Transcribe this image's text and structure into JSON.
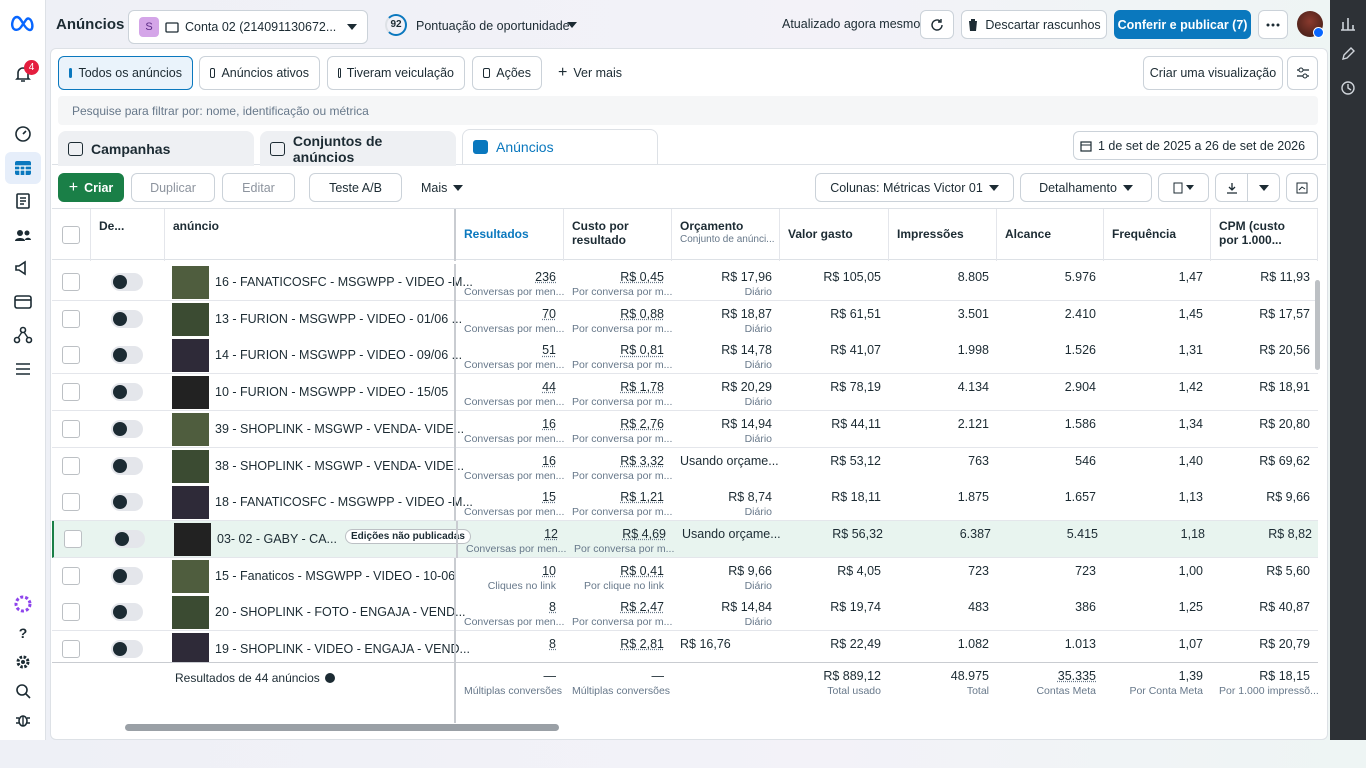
{
  "header": {
    "title": "Anúncios",
    "account_initial": "S",
    "account": "Conta 02 (214091130672...",
    "score": "92",
    "score_label": "Pontuação de oportunidade",
    "updated": "Atualizado agora mesmo",
    "discard": "Descartar rascunhos",
    "publish": "Conferir e publicar (7)",
    "notifications": "4"
  },
  "sidebar": {
    "help": "?"
  },
  "filters": {
    "items": [
      "Todos os anúncios",
      "Anúncios ativos",
      "Tiveram veiculação",
      "Ações",
      "Ver mais"
    ],
    "create_view": "Criar uma visualização"
  },
  "search": {
    "placeholder": "Pesquise para filtrar por: nome, identificação ou métrica"
  },
  "tabs": [
    "Campanhas",
    "Conjuntos de anúncios",
    "Anúncios"
  ],
  "date_range": "1 de set de 2025 a 26 de set de 2026",
  "toolbar": {
    "create": "Criar",
    "duplicate": "Duplicar",
    "edit": "Editar",
    "ab_test": "Teste A/B",
    "more": "Mais",
    "columns": "Colunas: Métricas Victor 01",
    "breakdown": "Detalhamento"
  },
  "table": {
    "columns": {
      "delivery": "De...",
      "name": "anúncio",
      "results": "Resultados",
      "cost": "Custo por resultado",
      "budget": "Orçamento",
      "budget_sub": "Conjunto de anúnci...",
      "spent": "Valor gasto",
      "impressions": "Impressões",
      "reach": "Alcance",
      "frequency": "Frequência",
      "cpm": "CPM (custo por 1.000..."
    },
    "rows": [
      {
        "name": "16 - FANATICOSFC - MSGWPP - VIDEO -M...",
        "results": "236",
        "results_sub": "Conversas por men...",
        "cost": "R$ 0,45",
        "cost_sub": "Por conversa por m...",
        "budget": "R$ 17,96",
        "budget_sub": "Diário",
        "spent": "R$ 105,05",
        "impressions": "8.805",
        "reach": "5.976",
        "frequency": "1,47",
        "cpm": "R$ 11,93"
      },
      {
        "name": "13 - FURION - MSGWPP - VIDEO - 01/06 ...",
        "results": "70",
        "results_sub": "Conversas por men...",
        "cost": "R$ 0,88",
        "cost_sub": "Por conversa por m...",
        "budget": "R$ 18,87",
        "budget_sub": "Diário",
        "spent": "R$ 61,51",
        "impressions": "3.501",
        "reach": "2.410",
        "frequency": "1,45",
        "cpm": "R$ 17,57"
      },
      {
        "name": "14 - FURION - MSGWPP - VIDEO - 09/06 ...",
        "results": "51",
        "results_sub": "Conversas por men...",
        "cost": "R$ 0,81",
        "cost_sub": "Por conversa por m...",
        "budget": "R$ 14,78",
        "budget_sub": "Diário",
        "spent": "R$ 41,07",
        "impressions": "1.998",
        "reach": "1.526",
        "frequency": "1,31",
        "cpm": "R$ 20,56"
      },
      {
        "name": "10 - FURION - MSGWPP - VIDEO - 15/05",
        "results": "44",
        "results_sub": "Conversas por men...",
        "cost": "R$ 1,78",
        "cost_sub": "Por conversa por m...",
        "budget": "R$ 20,29",
        "budget_sub": "Diário",
        "spent": "R$ 78,19",
        "impressions": "4.134",
        "reach": "2.904",
        "frequency": "1,42",
        "cpm": "R$ 18,91"
      },
      {
        "name": "39 - SHOPLINK - MSGWP - VENDA- VIDE...",
        "results": "16",
        "results_sub": "Conversas por men...",
        "cost": "R$ 2,76",
        "cost_sub": "Por conversa por m...",
        "budget": "R$ 14,94",
        "budget_sub": "Diário",
        "spent": "R$ 44,11",
        "impressions": "2.121",
        "reach": "1.586",
        "frequency": "1,34",
        "cpm": "R$ 20,80"
      },
      {
        "name": "38 - SHOPLINK - MSGWP - VENDA- VIDE...",
        "results": "16",
        "results_sub": "Conversas por men...",
        "cost": "R$ 3,32",
        "cost_sub": "Por conversa por m...",
        "budget": "Usando orçame...",
        "spent": "R$ 53,12",
        "impressions": "763",
        "reach": "546",
        "frequency": "1,40",
        "cpm": "R$ 69,62"
      },
      {
        "name": "18 - FANATICOSFC - MSGWPP - VIDEO -M...",
        "results": "15",
        "results_sub": "Conversas por men...",
        "cost": "R$ 1,21",
        "cost_sub": "Por conversa por m...",
        "budget": "R$ 8,74",
        "budget_sub": "Diário",
        "spent": "R$ 18,11",
        "impressions": "1.875",
        "reach": "1.657",
        "frequency": "1,13",
        "cpm": "R$ 9,66"
      },
      {
        "name": "03- 02 - GABY - CA...",
        "badge": "Edições não publicadas",
        "results": "12",
        "results_sub": "Conversas por men...",
        "cost": "R$ 4,69",
        "cost_sub": "Por conversa por m...",
        "budget": "Usando orçame...",
        "spent": "R$ 56,32",
        "impressions": "6.387",
        "reach": "5.415",
        "frequency": "1,18",
        "cpm": "R$ 8,82"
      },
      {
        "name": "15 - Fanaticos - MSGWPP - VIDEO - 10-06",
        "results": "10",
        "results_sub": "Cliques no link",
        "cost": "R$ 0,41",
        "cost_sub": "Por clique no link",
        "budget": "R$ 9,66",
        "budget_sub": "Diário",
        "spent": "R$ 4,05",
        "impressions": "723",
        "reach": "723",
        "frequency": "1,00",
        "cpm": "R$ 5,60"
      },
      {
        "name": "20 - SHOPLINK - FOTO - ENGAJA - VEND...",
        "results": "8",
        "results_sub": "Conversas por men...",
        "cost": "R$ 2,47",
        "cost_sub": "Por conversa por m...",
        "budget": "R$ 14,84",
        "budget_sub": "Diário",
        "spent": "R$ 19,74",
        "impressions": "483",
        "reach": "386",
        "frequency": "1,25",
        "cpm": "R$ 40,87"
      },
      {
        "name": "19 - SHOPLINK - VIDEO - ENGAJA - VEND...",
        "results": "8",
        "cost": "R$ 2,81",
        "budget": "R$ 16,76",
        "spent": "R$ 22,49",
        "impressions": "1.082",
        "reach": "1.013",
        "frequency": "1,07",
        "cpm": "R$ 20,79"
      }
    ],
    "footer": {
      "label": "Resultados de 44 anúncios",
      "results": "—",
      "results_sub": "Múltiplas conversões",
      "cost": "—",
      "cost_sub": "Múltiplas conversões",
      "spent": "R$ 889,12",
      "spent_sub": "Total usado",
      "impressions": "48.975",
      "impressions_sub": "Total",
      "reach": "35.335",
      "reach_sub": "Contas Meta",
      "frequency": "1,39",
      "frequency_sub": "Por Conta Meta",
      "cpm": "R$ 18,15",
      "cpm_sub": "Por 1.000 impressõ..."
    }
  }
}
